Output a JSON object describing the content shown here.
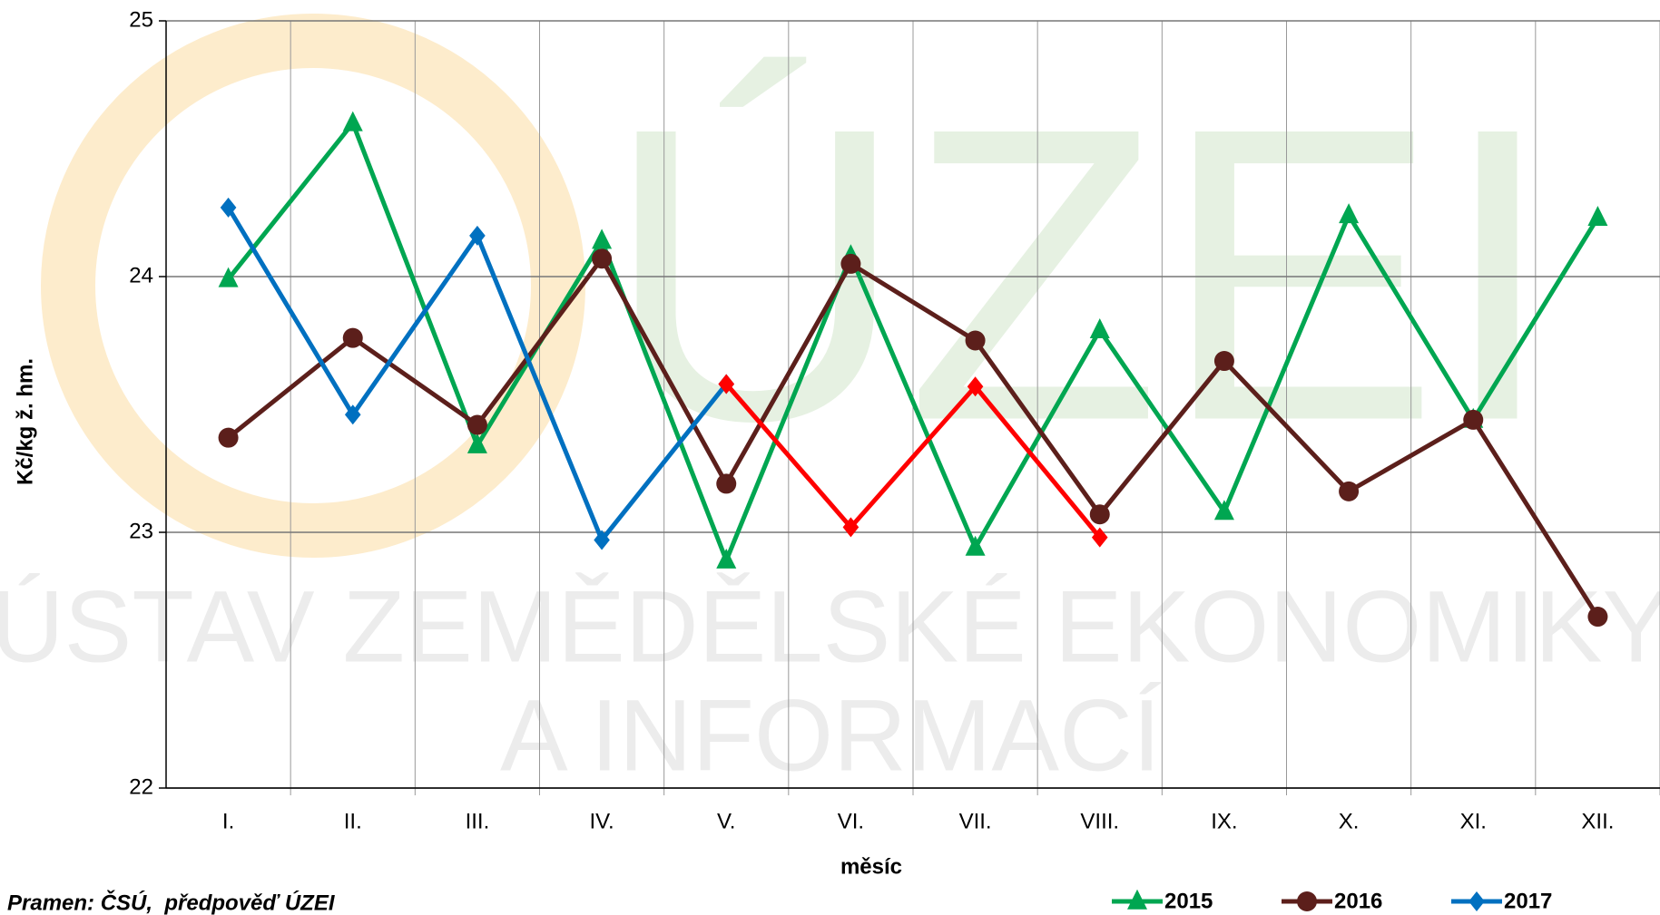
{
  "chart_data": {
    "type": "line",
    "y_label": "Kč/kg ž. hm.",
    "x_label": "měsíc",
    "source": "Pramen: ČSÚ,  předpověď ÚZEI",
    "watermark": [
      "ÚZEI",
      "ÚSTAV ZEMĚDĚLSKÉ EKONOMIKY",
      "A INFORMACÍ"
    ],
    "categories": [
      "I.",
      "II.",
      "III.",
      "IV.",
      "V.",
      "VI.",
      "VII.",
      "VIII.",
      "IX.",
      "X.",
      "XI.",
      "XII."
    ],
    "ylim": [
      22,
      25
    ],
    "yticks": [
      22,
      23,
      24,
      25
    ],
    "grid": true,
    "series": [
      {
        "name": "2015",
        "color": "#00a651",
        "marker": "triangle",
        "values": [
          23.99,
          24.6,
          23.34,
          24.14,
          22.89,
          24.08,
          22.94,
          23.79,
          23.08,
          24.24,
          23.44,
          24.23
        ]
      },
      {
        "name": "2016",
        "color": "#5c1f1b",
        "marker": "circle",
        "values": [
          23.37,
          23.76,
          23.42,
          24.07,
          23.19,
          24.05,
          23.75,
          23.07,
          23.67,
          23.16,
          23.44,
          22.67
        ]
      },
      {
        "name": "2017",
        "color": "#0070c0",
        "marker": "diamond",
        "values": [
          24.27,
          23.46,
          24.16,
          22.97,
          23.58,
          null,
          null,
          null,
          null,
          null,
          null,
          null
        ]
      },
      {
        "color": "#ff0000",
        "marker": "diamond",
        "values": [
          null,
          null,
          null,
          null,
          23.58,
          23.02,
          23.57,
          22.98,
          null,
          null,
          null,
          null
        ]
      }
    ]
  }
}
